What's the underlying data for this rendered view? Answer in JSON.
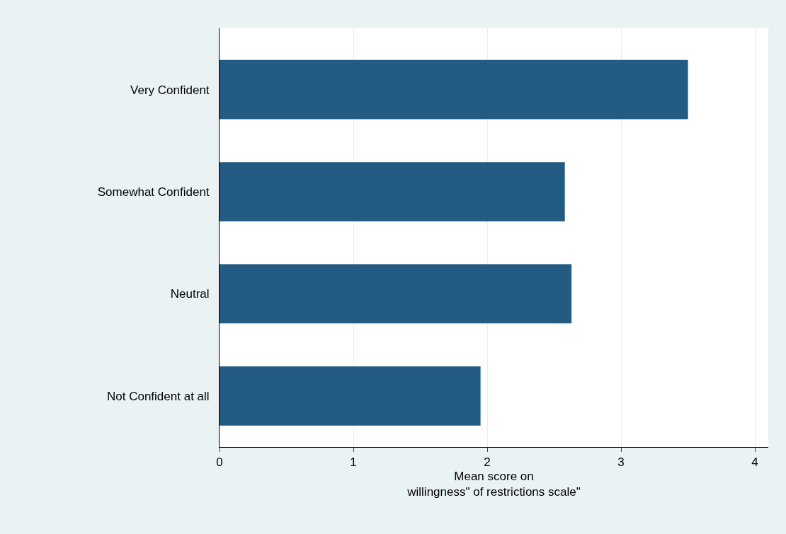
{
  "chart_data": {
    "type": "bar",
    "orientation": "horizontal",
    "categories": [
      "Very Confident",
      "Somewhat Confident",
      "Neutral",
      "Not Confident at all"
    ],
    "values": [
      3.5,
      2.58,
      2.63,
      1.95
    ],
    "color": "#235b82",
    "xlabel": "Mean score on\nwillingness\" of restrictions scale\"",
    "xlim": [
      0,
      4.1
    ],
    "xticks": [
      0,
      1,
      2,
      3,
      4
    ],
    "grid": "x"
  }
}
